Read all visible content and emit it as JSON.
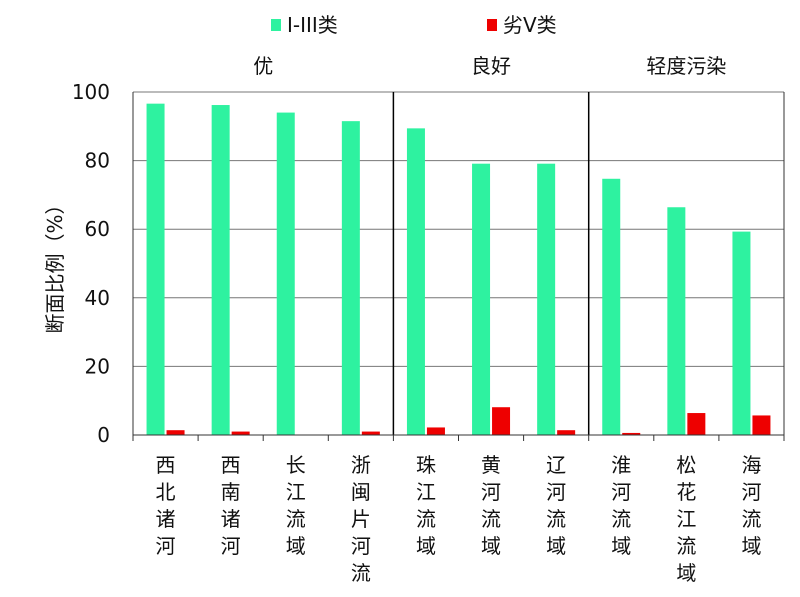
{
  "chart_data": {
    "type": "bar",
    "categories": [
      "西北诸河",
      "西南诸河",
      "长江流域",
      "浙闽片河流",
      "珠江流域",
      "黄河流域",
      "辽河流域",
      "淮河流域",
      "松花江流域",
      "海河流域"
    ],
    "series": [
      {
        "name": "I-III类",
        "color": "#2ef2a0",
        "values": [
          96.6,
          96.2,
          94.0,
          91.5,
          89.4,
          79.1,
          79.1,
          74.7,
          66.4,
          59.3
        ]
      },
      {
        "name": "劣V类",
        "color": "#ee0000",
        "values": [
          1.4,
          1.0,
          0.0,
          1.0,
          2.2,
          8.1,
          1.4,
          0.6,
          6.4,
          5.7
        ]
      }
    ],
    "ylabel": "断面比例（%）",
    "ylim": [
      0,
      100
    ],
    "yticks": [
      "0",
      "20",
      "40",
      "60",
      "80",
      "100"
    ],
    "grid": true,
    "legend": "top",
    "groups": [
      {
        "label": "优",
        "start": 0,
        "end": 3
      },
      {
        "label": "良好",
        "start": 4,
        "end": 6
      },
      {
        "label": "轻度污染",
        "start": 7,
        "end": 9
      }
    ]
  }
}
